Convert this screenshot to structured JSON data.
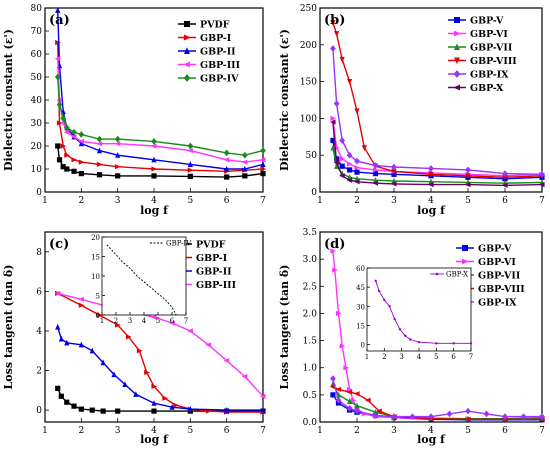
{
  "chart_data": [
    {
      "type": "line",
      "panel_label": "(a)",
      "xlabel": "log f",
      "ylabel": "Dielectric constant (ε')",
      "xlim": [
        1,
        7
      ],
      "ylim": [
        0,
        80
      ],
      "xticks": [
        1,
        2,
        3,
        4,
        5,
        6,
        7
      ],
      "yticks": [
        0,
        10,
        20,
        30,
        40,
        50,
        60,
        70,
        80
      ],
      "legend_position": "top-right",
      "series": [
        {
          "name": "PVDF",
          "color": "#000000",
          "marker": "square",
          "x": [
            1.35,
            1.4,
            1.5,
            1.6,
            1.8,
            2.0,
            2.5,
            3.0,
            4.0,
            5.0,
            6.0,
            6.5,
            7.0
          ],
          "y": [
            20,
            14,
            11,
            10,
            9,
            8,
            7.5,
            7,
            7,
            6.8,
            6.5,
            7,
            8
          ]
        },
        {
          "name": "GBP-I",
          "color": "#e60000",
          "marker": "triangle-right",
          "x": [
            1.35,
            1.4,
            1.5,
            1.6,
            1.8,
            2.0,
            2.5,
            3.0,
            4.0,
            5.0,
            6.0,
            6.5,
            7.0
          ],
          "y": [
            65,
            30,
            20,
            16,
            14,
            13,
            12,
            11,
            10,
            9.5,
            9,
            9.5,
            10
          ]
        },
        {
          "name": "GBP-II",
          "color": "#0000e6",
          "marker": "triangle-up",
          "x": [
            1.35,
            1.4,
            1.5,
            1.6,
            1.8,
            2.0,
            2.5,
            3.0,
            4.0,
            5.0,
            6.0,
            6.5,
            7.0
          ],
          "y": [
            79,
            55,
            35,
            28,
            24,
            21,
            18,
            16,
            14,
            12,
            10,
            10,
            12
          ]
        },
        {
          "name": "GBP-III",
          "color": "#ff33ff",
          "marker": "triangle-left",
          "x": [
            1.35,
            1.4,
            1.5,
            1.6,
            1.8,
            2.0,
            2.5,
            3.0,
            4.0,
            5.0,
            6.0,
            6.5,
            7.0
          ],
          "y": [
            58,
            40,
            30,
            26,
            24,
            22,
            21,
            21,
            20,
            18,
            14,
            13,
            14
          ]
        },
        {
          "name": "GBP-IV",
          "color": "#1a8c1a",
          "marker": "diamond",
          "x": [
            1.35,
            1.4,
            1.5,
            1.6,
            1.8,
            2.0,
            2.5,
            3.0,
            4.0,
            5.0,
            6.0,
            6.5,
            7.0
          ],
          "y": [
            50,
            38,
            32,
            28,
            26,
            25,
            23,
            23,
            22,
            20,
            17,
            16,
            18
          ]
        }
      ]
    },
    {
      "type": "line",
      "panel_label": "(b)",
      "xlabel": "log f",
      "ylabel": "Dielectric constant (ε')",
      "xlim": [
        1,
        7
      ],
      "ylim": [
        0,
        250
      ],
      "xticks": [
        1,
        2,
        3,
        4,
        5,
        6,
        7
      ],
      "yticks": [
        0,
        50,
        100,
        150,
        200,
        250
      ],
      "legend_position": "top-right",
      "series": [
        {
          "name": "GBP-V",
          "color": "#0000e6",
          "marker": "square",
          "x": [
            1.35,
            1.45,
            1.6,
            1.8,
            2.0,
            2.5,
            3.0,
            4.0,
            5.0,
            6.0,
            7.0
          ],
          "y": [
            70,
            45,
            35,
            30,
            27,
            25,
            24,
            22,
            20,
            18,
            20
          ]
        },
        {
          "name": "GBP-VI",
          "color": "#ff33ff",
          "marker": "triangle-right",
          "x": [
            1.35,
            1.45,
            1.6,
            1.8,
            2.0,
            2.5,
            3.0,
            4.0,
            5.0,
            6.0,
            7.0
          ],
          "y": [
            100,
            60,
            45,
            38,
            33,
            30,
            28,
            26,
            24,
            22,
            24
          ]
        },
        {
          "name": "GBP-VII",
          "color": "#1a8c1a",
          "marker": "triangle-up",
          "x": [
            1.35,
            1.45,
            1.6,
            1.8,
            2.0,
            2.5,
            3.0,
            4.0,
            5.0,
            6.0,
            7.0
          ],
          "y": [
            60,
            35,
            25,
            20,
            18,
            16,
            15,
            14,
            13,
            12,
            13
          ]
        },
        {
          "name": "GBP-VIII",
          "color": "#e60000",
          "marker": "triangle-down",
          "x": [
            1.35,
            1.45,
            1.6,
            1.8,
            2.0,
            2.2,
            2.5,
            3.0,
            4.0,
            5.0,
            6.0,
            7.0
          ],
          "y": [
            230,
            215,
            180,
            150,
            110,
            60,
            35,
            28,
            24,
            22,
            20,
            22
          ]
        },
        {
          "name": "GBP-IX",
          "color": "#9933ff",
          "marker": "diamond",
          "x": [
            1.35,
            1.45,
            1.6,
            1.8,
            2.0,
            2.5,
            3.0,
            4.0,
            5.0,
            6.0,
            7.0
          ],
          "y": [
            195,
            120,
            70,
            50,
            42,
            36,
            34,
            32,
            30,
            25,
            24
          ]
        },
        {
          "name": "GBP-X",
          "color": "#660066",
          "marker": "triangle-left",
          "x": [
            1.35,
            1.45,
            1.6,
            1.8,
            2.0,
            2.5,
            3.0,
            4.0,
            5.0,
            6.0,
            7.0
          ],
          "y": [
            95,
            40,
            22,
            16,
            14,
            12,
            11,
            10,
            10,
            9,
            10
          ]
        }
      ]
    },
    {
      "type": "line",
      "panel_label": "(c)",
      "xlabel": "log f",
      "ylabel": "Loss tangent (tan δ)",
      "xlim": [
        1,
        7
      ],
      "ylim": [
        -0.6,
        9
      ],
      "xticks": [
        1,
        2,
        3,
        4,
        5,
        6,
        7
      ],
      "yticks": [
        0,
        2,
        4,
        6,
        8
      ],
      "legend_position": "top-right",
      "series": [
        {
          "name": "PVDF",
          "color": "#000000",
          "marker": "square",
          "x": [
            1.35,
            1.45,
            1.6,
            1.8,
            2.0,
            2.3,
            2.6,
            3.0,
            4.0,
            5.0,
            6.0,
            7.0
          ],
          "y": [
            1.1,
            0.7,
            0.4,
            0.2,
            0.05,
            0.0,
            -0.05,
            -0.05,
            -0.05,
            -0.05,
            -0.05,
            -0.05
          ]
        },
        {
          "name": "GBP-I",
          "color": "#e60000",
          "marker": "triangle-right",
          "x": [
            1.35,
            2.0,
            2.5,
            3.0,
            3.3,
            3.6,
            3.8,
            4.0,
            4.3,
            4.6,
            5.0,
            5.5,
            6.0,
            7.0
          ],
          "y": [
            5.9,
            5.3,
            4.8,
            4.3,
            3.7,
            3.0,
            1.9,
            1.2,
            0.6,
            0.25,
            0.05,
            -0.05,
            -0.1,
            -0.1
          ]
        },
        {
          "name": "GBP-II",
          "color": "#0000e6",
          "marker": "triangle-up",
          "x": [
            1.35,
            1.45,
            1.6,
            2.0,
            2.3,
            2.6,
            2.9,
            3.2,
            3.5,
            4.0,
            4.5,
            5.0,
            6.0,
            7.0
          ],
          "y": [
            4.2,
            3.6,
            3.4,
            3.3,
            3.0,
            2.4,
            1.8,
            1.3,
            0.8,
            0.35,
            0.15,
            0.05,
            0.0,
            0.0
          ]
        },
        {
          "name": "GBP-III",
          "color": "#ff33ff",
          "marker": "triangle-left",
          "x": [
            1.35,
            2.0,
            3.0,
            4.0,
            4.5,
            5.0,
            5.5,
            6.0,
            6.5,
            7.0
          ],
          "y": [
            5.9,
            5.6,
            5.1,
            4.7,
            4.4,
            4.0,
            3.3,
            2.5,
            1.7,
            0.7
          ]
        }
      ],
      "inset": {
        "xlim": [
          1,
          7
        ],
        "ylim": [
          0,
          20
        ],
        "xticks": [
          1,
          2,
          3,
          4,
          5,
          6,
          7
        ],
        "yticks": [
          0,
          5,
          10,
          15,
          20
        ],
        "series": [
          {
            "name": "GBP-IV",
            "color": "#000000",
            "marker": "none",
            "dashed": true,
            "x": [
              1.35,
              2.0,
              2.5,
              3.0,
              3.5,
              4.0,
              4.5,
              5.0,
              5.5,
              6.0,
              6.3
            ],
            "y": [
              18,
              15.5,
              13.5,
              12,
              10,
              8.5,
              7,
              5.5,
              4,
              2,
              0
            ]
          }
        ]
      }
    },
    {
      "type": "line",
      "panel_label": "(d)",
      "xlabel": "log f",
      "ylabel": "Loss tangent (tan δ)",
      "xlim": [
        1,
        7
      ],
      "ylim": [
        0,
        3.5
      ],
      "xticks": [
        1,
        2,
        3,
        4,
        5,
        6,
        7
      ],
      "yticks": [
        0.0,
        0.5,
        1.0,
        1.5,
        2.0,
        2.5,
        3.0,
        3.5
      ],
      "legend_position": "top-right",
      "series": [
        {
          "name": "GBP-V",
          "color": "#0000e6",
          "marker": "square",
          "x": [
            1.35,
            1.5,
            1.8,
            2.0,
            2.5,
            3.0,
            4.0,
            5.0,
            6.0,
            7.0
          ],
          "y": [
            0.5,
            0.35,
            0.22,
            0.18,
            0.12,
            0.08,
            0.05,
            0.04,
            0.04,
            0.04
          ]
        },
        {
          "name": "GBP-VI",
          "color": "#ff33ff",
          "marker": "triangle-right",
          "x": [
            1.35,
            1.4,
            1.5,
            1.6,
            1.7,
            1.8,
            1.9,
            2.0,
            2.2,
            2.5,
            3.0,
            4.0,
            5.0,
            6.0,
            7.0
          ],
          "y": [
            3.15,
            2.8,
            2.0,
            1.4,
            1.0,
            0.6,
            0.4,
            0.25,
            0.15,
            0.1,
            0.08,
            0.06,
            0.06,
            0.06,
            0.08
          ]
        },
        {
          "name": "GBP-VII",
          "color": "#1a8c1a",
          "marker": "triangle-up",
          "x": [
            1.35,
            1.5,
            1.8,
            2.0,
            2.5,
            3.0,
            4.0,
            5.0,
            6.0,
            7.0
          ],
          "y": [
            0.7,
            0.5,
            0.38,
            0.3,
            0.18,
            0.1,
            0.07,
            0.06,
            0.06,
            0.07
          ]
        },
        {
          "name": "GBP-VIII",
          "color": "#e60000",
          "marker": "triangle-left",
          "x": [
            1.35,
            1.5,
            1.8,
            2.0,
            2.3,
            2.6,
            3.0,
            4.0,
            5.0,
            6.0,
            7.0
          ],
          "y": [
            0.65,
            0.6,
            0.55,
            0.52,
            0.4,
            0.2,
            0.1,
            0.06,
            0.05,
            0.05,
            0.05
          ]
        },
        {
          "name": "GBP-IX",
          "color": "#9933ff",
          "marker": "diamond",
          "x": [
            1.35,
            1.5,
            1.8,
            2.0,
            2.5,
            3.0,
            3.5,
            4.0,
            4.5,
            5.0,
            5.5,
            6.0,
            6.5,
            7.0
          ],
          "y": [
            0.8,
            0.4,
            0.25,
            0.2,
            0.12,
            0.1,
            0.1,
            0.1,
            0.15,
            0.2,
            0.15,
            0.1,
            0.1,
            0.1
          ]
        }
      ],
      "inset": {
        "xlim": [
          1,
          7
        ],
        "ylim": [
          -5,
          60
        ],
        "xticks": [
          1,
          2,
          3,
          4,
          5,
          6,
          7
        ],
        "yticks": [
          0,
          15,
          30,
          45,
          60
        ],
        "series": [
          {
            "name": "GBP-X",
            "color": "#9900cc",
            "marker": "dot",
            "x": [
              1.5,
              1.7,
              2.0,
              2.3,
              2.6,
              2.9,
              3.2,
              3.5,
              4.0,
              5.0,
              6.0,
              7.0
            ],
            "y": [
              50,
              42,
              35,
              30,
              20,
              12,
              7,
              4,
              2,
              1,
              1,
              1
            ]
          }
        ]
      }
    }
  ]
}
